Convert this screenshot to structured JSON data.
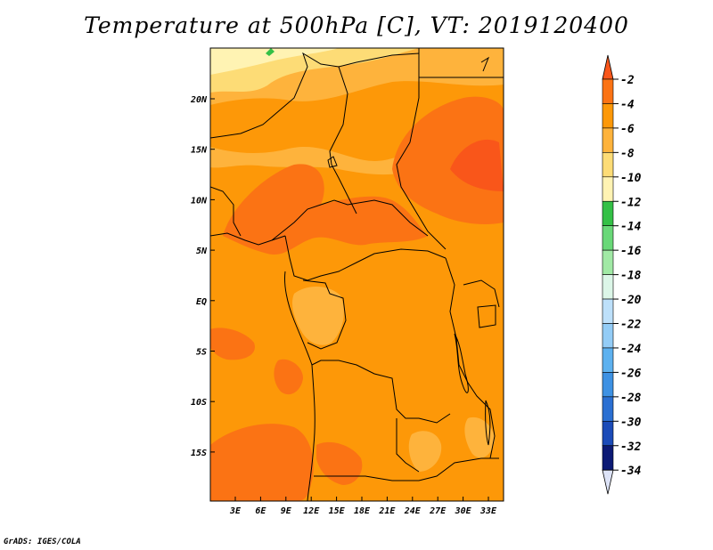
{
  "title": "Temperature at 500hPa [C], VT: 2019120400",
  "credit": "GrADS: IGES/COLA",
  "map": {
    "region": "Central Africa",
    "lon_labels": [
      "3E",
      "6E",
      "9E",
      "12E",
      "15E",
      "18E",
      "21E",
      "24E",
      "27E",
      "30E",
      "33E"
    ],
    "lat_labels": [
      "20N",
      "15N",
      "10N",
      "5N",
      "EQ",
      "5S",
      "10S",
      "15S"
    ]
  },
  "colorbar": {
    "levels": [
      "-2",
      "-4",
      "-6",
      "-8",
      "-10",
      "-12",
      "-14",
      "-16",
      "-18",
      "-20",
      "-22",
      "-24",
      "-26",
      "-28",
      "-30",
      "-32",
      "-34"
    ],
    "colors": [
      "#f9561a",
      "#fb7314",
      "#fd9808",
      "#feb33c",
      "#fddc76",
      "#fff3b3",
      "#34c046",
      "#69d878",
      "#a1e9a5",
      "#dcf6e8",
      "#bde0fa",
      "#93ccf6",
      "#5db1ef",
      "#3d91e3",
      "#2a6fd2",
      "#1b4bb8",
      "#0c1a75"
    ],
    "top_color": "#f9561a",
    "bottom_color": "#dde3f7"
  }
}
